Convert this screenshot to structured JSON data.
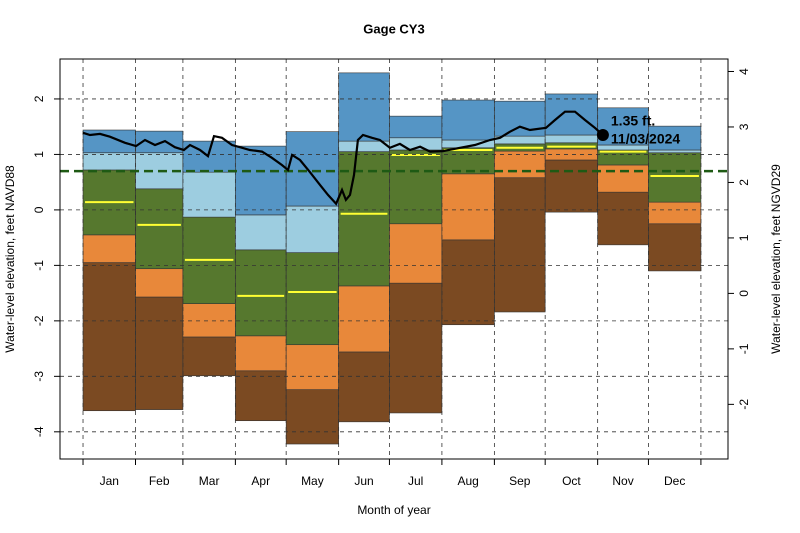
{
  "chart_data": {
    "type": "percentile_band",
    "title": "Gage CY3",
    "x_label": "Month of year",
    "y_label": "Water-level elevation, feet NAVD88",
    "y2_label": "Water-level elevation, feet NGVD29",
    "categories": [
      "Jan",
      "Feb",
      "Mar",
      "Apr",
      "May",
      "Jun",
      "Jul",
      "Aug",
      "Sep",
      "Oct",
      "Nov",
      "Dec"
    ],
    "x_edges": [
      0,
      31,
      59,
      90,
      120,
      151,
      181,
      212,
      243,
      273,
      304,
      334,
      365
    ],
    "xlim": [
      -13.6,
      381
    ],
    "ylim": [
      -4.49,
      2.72
    ],
    "yticks": [
      -4,
      -3,
      -2,
      -1,
      0,
      1,
      2
    ],
    "y2lim": [
      -2.985,
      4.225
    ],
    "y2ticks": [
      -2,
      -1,
      0,
      1,
      2,
      3,
      4
    ],
    "grid": true,
    "band_colors": [
      "#7b4a22",
      "#e8883a",
      "#56782e",
      "#9dcde0",
      "#5595c5"
    ],
    "levels": [
      {
        "values": [
          -3.62,
          -3.6,
          -2.99,
          -3.8,
          -4.22,
          -3.82,
          -3.66,
          -2.07,
          -1.84,
          -0.04,
          -0.63,
          -1.1
        ]
      },
      {
        "values": [
          -0.95,
          -1.57,
          -2.29,
          -2.9,
          -3.24,
          -2.56,
          -1.32,
          -0.54,
          0.58,
          0.9,
          0.32,
          -0.25
        ]
      },
      {
        "values": [
          -0.45,
          -1.06,
          -1.69,
          -2.27,
          -2.43,
          -1.37,
          -0.25,
          0.65,
          1.06,
          1.1,
          0.81,
          0.14
        ]
      },
      {
        "values": [
          0.72,
          0.38,
          -0.13,
          -0.72,
          -0.77,
          1.05,
          1.08,
          1.12,
          1.19,
          1.21,
          1.08,
          1.03
        ]
      },
      {
        "values": [
          1.03,
          1.03,
          0.68,
          -0.09,
          0.07,
          1.24,
          1.3,
          1.26,
          1.33,
          1.35,
          1.17,
          1.08
        ]
      },
      {
        "values": [
          1.44,
          1.42,
          1.24,
          1.15,
          1.41,
          2.47,
          1.69,
          1.98,
          1.96,
          2.09,
          1.84,
          1.51
        ]
      }
    ],
    "median": {
      "color": "#ffff33",
      "values": [
        0.14,
        -0.27,
        -0.9,
        -1.55,
        -1.48,
        -0.07,
        0.99,
        1.08,
        1.12,
        1.14,
        1.05,
        0.61
      ]
    },
    "reference_line": {
      "value": 0.7,
      "color": "#1e5a14"
    },
    "line": {
      "color": "#000000",
      "x": [
        0,
        4.1,
        10,
        15.9,
        24.8,
        31.3,
        36.6,
        42.5,
        48.4,
        54.3,
        59.6,
        63.2,
        69.1,
        73.8,
        77.4,
        82.1,
        88,
        92.7,
        98.6,
        105.7,
        111.6,
        117.5,
        121.1,
        123.5,
        128.2,
        134.1,
        140,
        144.7,
        149.5,
        153,
        155.3,
        157.7,
        160.1,
        162.4,
        165.4,
        170.7,
        175.4,
        181.3,
        187.2,
        193.1,
        199.1,
        205,
        212.6,
        222.7,
        231.5,
        240.4,
        246.3,
        252.2,
        258.1,
        264,
        273.5,
        278.8,
        284.7,
        290.6,
        296.5,
        302.4,
        307.1
      ],
      "y": [
        1.39,
        1.35,
        1.37,
        1.32,
        1.21,
        1.15,
        1.26,
        1.17,
        1.24,
        1.13,
        1.08,
        1.17,
        1.08,
        0.97,
        1.33,
        1.3,
        1.17,
        1.13,
        1.08,
        1.05,
        0.94,
        0.81,
        0.72,
        0.99,
        0.9,
        0.68,
        0.45,
        0.27,
        0.11,
        0.36,
        0.18,
        0.27,
        0.63,
        1.26,
        1.35,
        1.3,
        1.26,
        1.12,
        1.19,
        1.08,
        1.14,
        1.05,
        1.06,
        1.12,
        1.17,
        1.26,
        1.3,
        1.41,
        1.5,
        1.44,
        1.48,
        1.62,
        1.77,
        1.77,
        1.62,
        1.48,
        1.35
      ]
    },
    "point": {
      "x": 307.1,
      "y": 1.35,
      "value_label": "1.35 ft.",
      "date_label": "11/03/2024"
    }
  }
}
